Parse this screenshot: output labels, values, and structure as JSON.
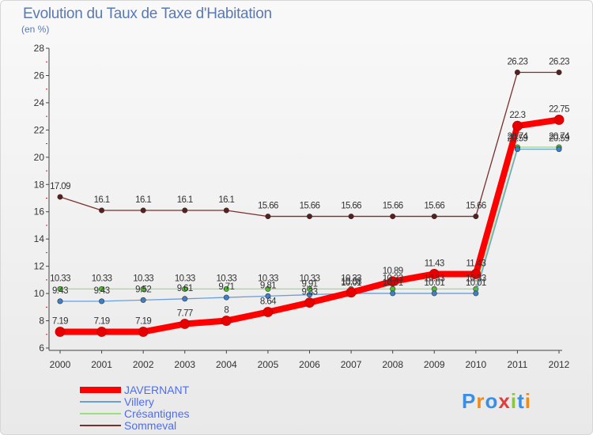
{
  "title": "Evolution du Taux de Taxe d'Habitation",
  "subtitle": "(en %)",
  "logo": {
    "text": "Proxiti",
    "colors": [
      "#3a8ee6",
      "#f08c16",
      "#3a8ee6",
      "#e23c3c",
      "#8cc63f",
      "#3a8ee6",
      "#f08c16"
    ]
  },
  "chart_data": {
    "type": "line",
    "x": [
      2000,
      2001,
      2002,
      2003,
      2004,
      2005,
      2006,
      2007,
      2008,
      2009,
      2010,
      2011,
      2012
    ],
    "ylim": [
      6,
      28
    ],
    "yticks": [
      6,
      8,
      10,
      12,
      14,
      16,
      18,
      20,
      22,
      24,
      26,
      28
    ],
    "grid": false,
    "legend_position": "bottom-left",
    "series": [
      {
        "name": "JAVERNANT",
        "color": "#ff0000",
        "marker": "#e60000",
        "values": [
          7.19,
          7.19,
          7.19,
          7.77,
          8,
          8.64,
          9.33,
          10.08,
          10.89,
          11.43,
          11.43,
          22.3,
          22.75
        ],
        "labels": [
          "7.19",
          "7.19",
          "7.19",
          "7.77",
          "8",
          "8.64",
          "9.33",
          "10.08",
          "10.89",
          "11.43",
          "11.43",
          "22.3",
          "22.75"
        ]
      },
      {
        "name": "Villery",
        "color": "#6b9ed6",
        "marker": "#3d7fc9",
        "values": [
          9.43,
          9.43,
          9.52,
          9.61,
          9.71,
          9.81,
          9.91,
          10.01,
          10.01,
          10.01,
          10.01,
          20.59,
          20.59
        ],
        "labels": [
          "9.43",
          "9.43",
          "9.52",
          "9.61",
          "9.71",
          "9.81",
          "9.91",
          "10.01",
          "10.01",
          "10.01",
          "10.01",
          "20.59",
          "20.59"
        ]
      },
      {
        "name": "Crésantignes",
        "color": "#99e07a",
        "marker": "#4fbf2e",
        "values": [
          10.33,
          10.33,
          10.33,
          10.33,
          10.33,
          10.33,
          10.33,
          10.33,
          10.33,
          10.33,
          10.33,
          20.74,
          20.74
        ],
        "labels": [
          "10.33",
          "10.33",
          "10.33",
          "10.33",
          "10.33",
          "10.33",
          "10.33",
          "10.33",
          "10.33",
          "10.33",
          "10.33",
          "20.74",
          "20.74"
        ]
      },
      {
        "name": "Sommeval",
        "color": "#7a2f2f",
        "marker": "#5c1d1d",
        "values": [
          17.09,
          16.1,
          16.1,
          16.1,
          16.1,
          15.66,
          15.66,
          15.66,
          15.66,
          15.66,
          15.66,
          26.23,
          26.23
        ],
        "labels": [
          "17.09",
          "16.1",
          "16.1",
          "16.1",
          "16.1",
          "15.66",
          "15.66",
          "15.66",
          "15.66",
          "15.66",
          "15.66",
          "26.23",
          "26.23"
        ]
      }
    ]
  }
}
